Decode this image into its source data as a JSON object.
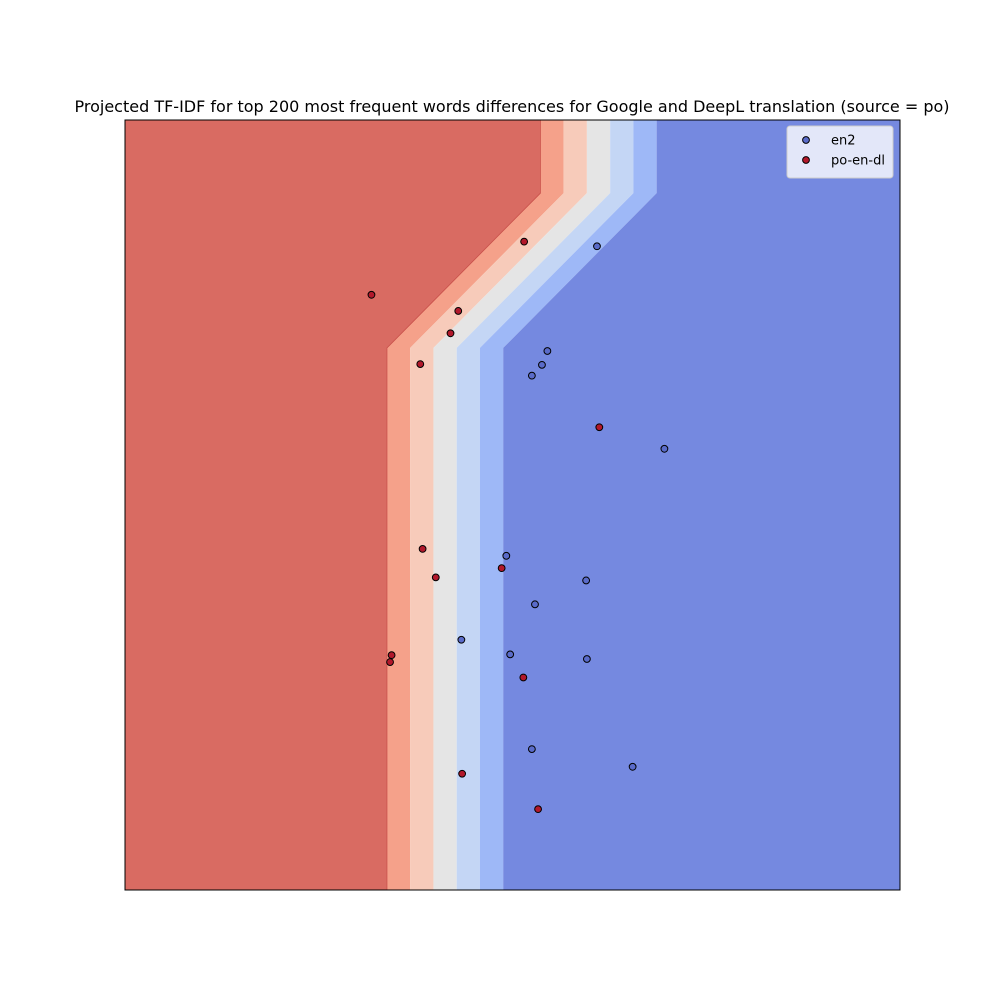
{
  "chart_data": {
    "type": "scatter",
    "title": "Projected TF-IDF for top 200 most frequent words differences for Google and DeepL translation (source = po)",
    "xlabel": "",
    "ylabel": "",
    "xlim": [
      0,
      100
    ],
    "ylim": [
      0,
      100
    ],
    "axis_ticks": false,
    "grid": false,
    "legend_position": "top-right",
    "background": {
      "type": "decision-regions",
      "colors": [
        "#d96b62",
        "#f5a18a",
        "#f7cbba",
        "#e5e5e5",
        "#c4d6f5",
        "#9eb8f7",
        "#7589e0"
      ],
      "boundaries": [
        {
          "top_x": 53.6,
          "bottom_x": 33.8
        },
        {
          "top_x": 56.6,
          "bottom_x": 36.8
        },
        {
          "top_x": 59.6,
          "bottom_x": 39.8
        },
        {
          "top_x": 62.6,
          "bottom_x": 42.8
        },
        {
          "top_x": 65.6,
          "bottom_x": 45.8
        },
        {
          "top_x": 68.6,
          "bottom_x": 48.8
        }
      ],
      "bend_y_top": 90.5,
      "bend_y_bottom": 70.4
    },
    "series": [
      {
        "name": "en2",
        "color": "#5a6bc9",
        "points": [
          {
            "x": 60.9,
            "y": 83.6
          },
          {
            "x": 54.5,
            "y": 70.0
          },
          {
            "x": 53.8,
            "y": 68.2
          },
          {
            "x": 52.5,
            "y": 66.8
          },
          {
            "x": 69.6,
            "y": 57.3
          },
          {
            "x": 49.2,
            "y": 43.4
          },
          {
            "x": 59.5,
            "y": 40.2
          },
          {
            "x": 52.9,
            "y": 37.1
          },
          {
            "x": 43.4,
            "y": 32.5
          },
          {
            "x": 49.7,
            "y": 30.6
          },
          {
            "x": 59.6,
            "y": 30.0
          },
          {
            "x": 52.5,
            "y": 18.3
          },
          {
            "x": 65.5,
            "y": 16.0
          }
        ]
      },
      {
        "name": "po-en-dl",
        "color": "#b2182b",
        "points": [
          {
            "x": 51.5,
            "y": 84.2
          },
          {
            "x": 31.8,
            "y": 77.3
          },
          {
            "x": 43.0,
            "y": 75.2
          },
          {
            "x": 42.0,
            "y": 72.3
          },
          {
            "x": 38.1,
            "y": 68.3
          },
          {
            "x": 61.2,
            "y": 60.1
          },
          {
            "x": 38.4,
            "y": 44.3
          },
          {
            "x": 40.1,
            "y": 40.6
          },
          {
            "x": 48.6,
            "y": 41.8
          },
          {
            "x": 34.4,
            "y": 30.5
          },
          {
            "x": 34.2,
            "y": 29.6
          },
          {
            "x": 51.4,
            "y": 27.6
          },
          {
            "x": 43.5,
            "y": 15.1
          },
          {
            "x": 53.3,
            "y": 10.5
          }
        ]
      }
    ]
  }
}
